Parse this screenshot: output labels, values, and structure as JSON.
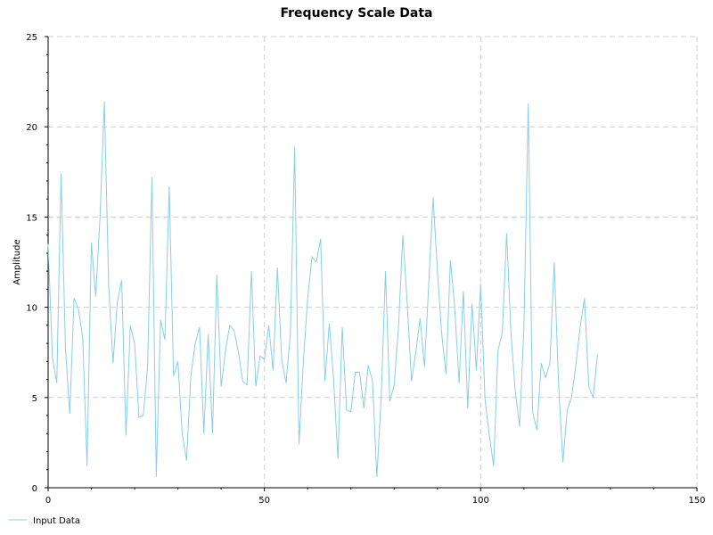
{
  "chart_data": {
    "type": "line",
    "title": "Frequency Scale Data",
    "xlabel": "",
    "ylabel": "Amplitude",
    "xlim": [
      0,
      150
    ],
    "ylim": [
      0,
      25
    ],
    "x_ticks": [
      0,
      50,
      100,
      150
    ],
    "y_ticks": [
      0,
      5,
      10,
      15,
      20,
      25
    ],
    "grid": true,
    "legend_position": "bottom-left",
    "series": [
      {
        "name": "Input Data",
        "color": "#87ceeb",
        "x": [
          0,
          1,
          2,
          3,
          4,
          5,
          6,
          7,
          8,
          9,
          10,
          11,
          12,
          13,
          14,
          15,
          16,
          17,
          18,
          19,
          20,
          21,
          22,
          23,
          24,
          25,
          26,
          27,
          28,
          29,
          30,
          31,
          32,
          33,
          34,
          35,
          36,
          37,
          38,
          39,
          40,
          41,
          42,
          43,
          44,
          45,
          46,
          47,
          48,
          49,
          50,
          51,
          52,
          53,
          54,
          55,
          56,
          57,
          58,
          59,
          60,
          61,
          62,
          63,
          64,
          65,
          66,
          67,
          68,
          69,
          70,
          71,
          72,
          73,
          74,
          75,
          76,
          77,
          78,
          79,
          80,
          81,
          82,
          83,
          84,
          85,
          86,
          87,
          88,
          89,
          90,
          91,
          92,
          93,
          94,
          95,
          96,
          97,
          98,
          99,
          100,
          101,
          102,
          103,
          104,
          105,
          106,
          107,
          108,
          109,
          110,
          111,
          112,
          113,
          114,
          115,
          116,
          117,
          118,
          119,
          120,
          121,
          122,
          123,
          124,
          125,
          126,
          127
        ],
        "values": [
          13.5,
          7.2,
          5.8,
          17.4,
          7.8,
          4.1,
          10.5,
          9.9,
          8.3,
          1.2,
          13.6,
          10.6,
          15.0,
          21.4,
          11.2,
          6.9,
          10.3,
          11.5,
          2.9,
          9.0,
          8.0,
          3.9,
          4.0,
          6.7,
          17.2,
          0.6,
          9.3,
          8.2,
          16.7,
          6.2,
          7.0,
          3.0,
          1.5,
          6.2,
          8.0,
          8.9,
          3.0,
          8.5,
          3.0,
          11.8,
          5.6,
          7.6,
          9.0,
          8.7,
          7.5,
          5.9,
          5.7,
          12.0,
          5.6,
          7.3,
          7.1,
          9.0,
          6.5,
          12.2,
          7.1,
          5.8,
          8.5,
          18.9,
          2.4,
          7.0,
          10.5,
          12.8,
          12.5,
          13.8,
          5.9,
          9.1,
          6.0,
          1.6,
          8.9,
          4.3,
          4.2,
          6.4,
          6.4,
          4.4,
          6.8,
          5.9,
          0.6,
          5.0,
          12.0,
          4.8,
          5.7,
          8.9,
          14.0,
          10.3,
          5.9,
          7.5,
          9.4,
          6.7,
          11.3,
          16.1,
          12.0,
          8.5,
          6.3,
          12.6,
          10.0,
          5.8,
          10.9,
          4.4,
          10.2,
          6.5,
          11.3,
          4.9,
          2.9,
          1.2,
          7.6,
          8.6,
          14.1,
          8.6,
          5.3,
          3.4,
          8.9,
          21.3,
          4.2,
          3.2,
          6.9,
          6.1,
          6.9,
          12.5,
          5.8,
          1.4,
          4.3,
          5.0,
          6.8,
          8.9,
          10.5,
          5.6,
          5.0,
          7.4
        ]
      }
    ]
  }
}
